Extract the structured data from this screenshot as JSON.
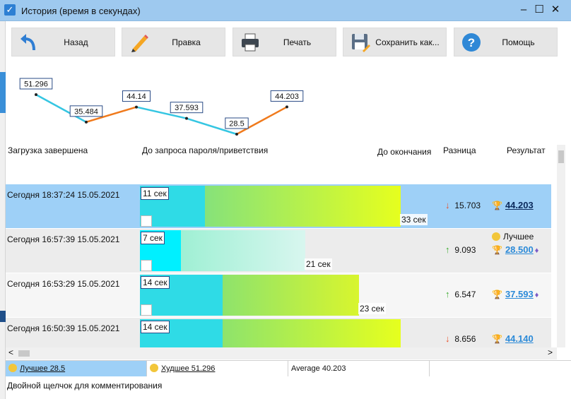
{
  "window": {
    "title": "История  (время в секундах)"
  },
  "toolbar": [
    {
      "label": "Назад",
      "icon": "back-arrow-icon"
    },
    {
      "label": "Правка",
      "icon": "pencil-icon"
    },
    {
      "label": "Печать",
      "icon": "printer-icon"
    },
    {
      "label": "Сохранить как...",
      "icon": "save-icon"
    },
    {
      "label": "Помощь",
      "icon": "help-icon"
    }
  ],
  "chart_data": {
    "type": "line",
    "values": [
      51.296,
      35.484,
      44.14,
      37.593,
      28.5,
      44.203
    ],
    "labels": [
      "51.296",
      "35.484",
      "44.14",
      "37.593",
      "28.5",
      "44.203"
    ]
  },
  "columns": {
    "load": "Загрузка завершена",
    "to_password": "До запроса пароля/приветствия",
    "to_end": "До окончания",
    "diff": "Разница",
    "result": "Результат"
  },
  "rows": [
    {
      "date": "Сегодня  18:37:24 15.05.2021",
      "first": "11 сек",
      "total": "33 сек",
      "diff": "15.703",
      "dir": "down",
      "result": "44.203",
      "best": ""
    },
    {
      "date": "Сегодня  16:57:39 15.05.2021",
      "first": "7 сек",
      "total": "21 сек",
      "diff": "9.093",
      "dir": "up",
      "result": "28.500",
      "best": "Лучшее"
    },
    {
      "date": "Сегодня  16:53:29 15.05.2021",
      "first": "14 сек",
      "total": "23 сек",
      "diff": "6.547",
      "dir": "up",
      "result": "37.593",
      "best": ""
    },
    {
      "date": "Сегодня  16:50:39 15.05.2021",
      "first": "14 сек",
      "total": "",
      "diff": "8.656",
      "dir": "down",
      "result": "44.140",
      "best": ""
    }
  ],
  "status": {
    "best": "Лучшее 28.5",
    "worst": "Худшее 51.296",
    "average": "Average 40.203"
  },
  "footer": "Двойной щелчок для комментирования",
  "colors": {
    "titlebar": "#9ec9ef",
    "selected_row": "#9ed0f7",
    "cyan_bar": "#2fdbe6",
    "line_down": "#35c6e2",
    "line_up": "#f07a1c"
  }
}
